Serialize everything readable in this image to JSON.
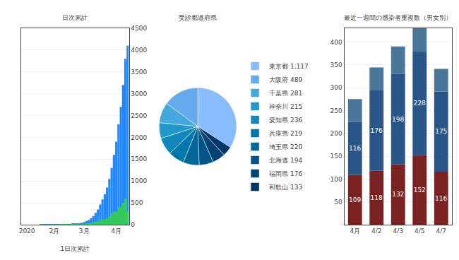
{
  "chart_data": [
    {
      "type": "bar",
      "title": "日次累計",
      "xlabel": "1日次累計",
      "categories": [
        null,
        null,
        "2020",
        null,
        null,
        null,
        null,
        null,
        null,
        null,
        null,
        null,
        null,
        null,
        "2月",
        null,
        null,
        null,
        null,
        null,
        null,
        null,
        null,
        null,
        null,
        null,
        null,
        "3月",
        null,
        null,
        null,
        null,
        null,
        null,
        null,
        null,
        null,
        null,
        null,
        null,
        null,
        "4月",
        null,
        null,
        null,
        null,
        null
      ],
      "series": [
        {
          "color": "#2288ff",
          "values": [
            0,
            0,
            0,
            0,
            0,
            0,
            0,
            0,
            1,
            1,
            1,
            1,
            1,
            2,
            2,
            2,
            3,
            5,
            7,
            10,
            13,
            15,
            20,
            25,
            30,
            35,
            45,
            60,
            80,
            110,
            150,
            200,
            270,
            350,
            460,
            580,
            700,
            850,
            1050,
            1300,
            1600,
            1900,
            2300,
            2700,
            3200,
            3800,
            4104
          ]
        },
        {
          "color": "#33cc55",
          "values": [
            0,
            0,
            0,
            0,
            0,
            0,
            0,
            0,
            1,
            0,
            0,
            0,
            0,
            1,
            0,
            0,
            1,
            2,
            2,
            3,
            3,
            2,
            5,
            5,
            5,
            5,
            10,
            15,
            20,
            30,
            40,
            50,
            70,
            80,
            110,
            120,
            120,
            150,
            200,
            250,
            300,
            300,
            400,
            400,
            500,
            600,
            304
          ]
        }
      ],
      "ylim": [
        0,
        4500
      ],
      "yticks": [
        0,
        500,
        1000,
        1500,
        2000,
        2500,
        3000,
        3500,
        4000,
        4500
      ],
      "grid": true
    },
    {
      "type": "pie",
      "title": "受診都道府県",
      "categories": [
        "東京都 1,117",
        "大阪府 489",
        "千葉県 281",
        "神奈川 215",
        "愛知県 236",
        "兵庫県 219",
        "埼玉県 220",
        "北海道 194",
        "福岡県 176",
        "和歌山 133"
      ],
      "values": [
        1117,
        489,
        281,
        215,
        236,
        219,
        220,
        194,
        176,
        133
      ],
      "colors": [
        "#88bbff",
        "#66aaee",
        "#44aadd",
        "#2299cc",
        "#1188bb",
        "#0077aa",
        "#006699",
        "#005588",
        "#004477",
        "#003366"
      ],
      "legend": "right"
    },
    {
      "type": "bar",
      "title": "最近一週間の感染者重複数（男女別）",
      "categories": [
        "4月",
        "4/2",
        "4/3",
        "4/5",
        "4/7"
      ],
      "series": [
        {
          "color": "#7a2222",
          "values": [
            109,
            118,
            132,
            152,
            116
          ],
          "data_labels": true
        },
        {
          "color": "#2a5588",
          "values": [
            116,
            176,
            198,
            228,
            175
          ],
          "data_labels": true
        },
        {
          "color": "#4a7799",
          "values": [
            50,
            50,
            60,
            50,
            50
          ]
        }
      ],
      "stacked": true,
      "ylim": [
        0,
        430
      ],
      "yticks": [
        50,
        100,
        150,
        200,
        250,
        300,
        350,
        400
      ],
      "grid": true
    }
  ]
}
